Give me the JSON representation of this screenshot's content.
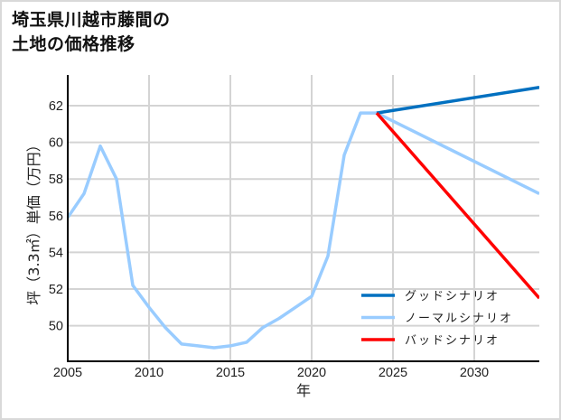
{
  "title": {
    "line1": "埼玉県川越市藤間の",
    "line2": "土地の価格推移"
  },
  "chart_data": {
    "type": "line",
    "title": "埼玉県川越市藤間の土地の価格推移",
    "xlabel": "年",
    "ylabel": "坪（3.3㎡）単価（万円）",
    "xlim": [
      2005,
      2034
    ],
    "ylim": [
      48,
      63.5
    ],
    "x_ticks": [
      "2005",
      "2010",
      "2015",
      "2020",
      "2025",
      "2030"
    ],
    "y_ticks": [
      "50",
      "52",
      "54",
      "56",
      "58",
      "60",
      "62"
    ],
    "grid": true,
    "legend_position": "lower right",
    "series": [
      {
        "name": "ノーマルシナリオ",
        "color": "#99ccff",
        "x": [
          2005,
          2006,
          2007,
          2008,
          2009,
          2010,
          2011,
          2012,
          2013,
          2014,
          2015,
          2016,
          2017,
          2018,
          2019,
          2020,
          2021,
          2022,
          2023,
          2024,
          2034
        ],
        "values": [
          55.9,
          57.2,
          59.8,
          58.0,
          52.2,
          51.0,
          49.9,
          49.0,
          48.9,
          48.8,
          48.9,
          49.1,
          49.9,
          50.4,
          51.0,
          51.6,
          53.8,
          59.3,
          61.6,
          61.6,
          57.2
        ]
      },
      {
        "name": "グッドシナリオ",
        "color": "#0070c0",
        "x": [
          2024,
          2034
        ],
        "values": [
          61.6,
          63.0
        ]
      },
      {
        "name": "バッドシナリオ",
        "color": "#ff0000",
        "x": [
          2024,
          2034
        ],
        "values": [
          61.6,
          51.5
        ]
      }
    ],
    "legend": [
      {
        "label": "グッドシナリオ",
        "color": "#0070c0"
      },
      {
        "label": "ノーマルシナリオ",
        "color": "#99ccff"
      },
      {
        "label": "バッドシナリオ",
        "color": "#ff0000"
      }
    ]
  }
}
